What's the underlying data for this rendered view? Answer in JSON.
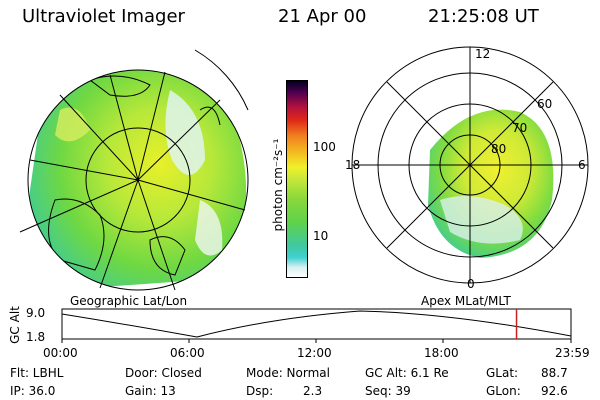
{
  "header": {
    "instrument": "Ultraviolet Imager",
    "date": "21 Apr 00",
    "time": "21:25:08 UT"
  },
  "colorbar": {
    "label": "photon cm⁻²s⁻¹",
    "ticks": [
      "100",
      "10"
    ]
  },
  "polar": {
    "mlt_labels": {
      "top": "12",
      "left": "18",
      "right": "6",
      "bottom": "0"
    },
    "lat_labels": [
      "60",
      "70",
      "80"
    ]
  },
  "panels": {
    "geo_label": "Geographic Lat/Lon",
    "apex_label": "Apex MLat/MLT"
  },
  "timeline": {
    "ylabel": "GC Alt",
    "y_ticks": [
      "9.0",
      "1.8"
    ],
    "x_ticks": [
      "00:00",
      "06:00",
      "12:00",
      "18:00",
      "23:59"
    ],
    "current_time_marker": "21:25"
  },
  "status": {
    "flt": "Flt: LBHL",
    "ip": "IP: 36.0",
    "door": "Door: Closed",
    "gain": "Gain: 13",
    "mode": "Mode: Normal",
    "dsp_label": "Dsp:",
    "dsp_value": "2.3",
    "gcalt": "GC Alt: 6.1 Re",
    "seq": "Seq: 39",
    "glat_label": "GLat:",
    "glat_value": "88.7",
    "glon_label": "GLon:",
    "glon_value": "92.6"
  },
  "colors": {
    "aurora_bright": "#e6f230",
    "aurora_mid": "#7ddc3a",
    "aurora_low": "#2fd0b0",
    "timeline_marker": "#cc2020"
  }
}
